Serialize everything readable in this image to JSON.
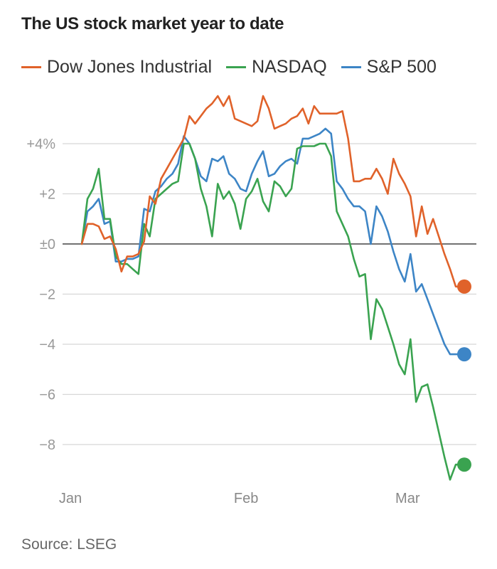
{
  "title": "The US stock market year to date",
  "source": "Source: LSEG",
  "chart_data": {
    "type": "line",
    "title": "The US stock market year to date",
    "xlabel": "",
    "ylabel": "",
    "x_tick_labels": [
      "Jan",
      "Feb",
      "Mar"
    ],
    "y_ticks": [
      {
        "value": 4,
        "label": "+4%"
      },
      {
        "value": 2,
        "label": "+2"
      },
      {
        "value": 0,
        "label": "±0"
      },
      {
        "value": -2,
        "label": "−2"
      },
      {
        "value": -4,
        "label": "−4"
      },
      {
        "value": -6,
        "label": "−6"
      },
      {
        "value": -8,
        "label": "−8"
      }
    ],
    "ylim": [
      -9.5,
      6
    ],
    "xlim": [
      0,
      70
    ],
    "x_month_positions": {
      "Jan": -1,
      "Feb": 30,
      "Mar": 58.5
    },
    "grid": true,
    "legend_position": "top",
    "series": [
      {
        "name": "Dow Jones Industrial",
        "color": "#e0622a",
        "x": [
          1,
          2,
          3,
          4,
          5,
          6,
          7,
          8,
          9,
          10,
          11,
          12,
          13,
          14,
          15,
          16,
          17,
          18,
          19,
          20,
          21,
          22,
          23,
          24,
          25,
          26,
          27,
          28,
          29,
          30,
          31,
          32,
          33,
          34,
          35,
          36,
          37,
          38,
          39,
          40,
          41,
          42,
          43,
          44,
          45,
          46,
          47,
          48,
          49,
          50,
          51,
          52,
          53,
          54,
          55,
          56,
          57,
          58,
          59,
          60,
          61,
          62,
          63,
          64,
          65,
          66,
          67,
          68
        ],
        "values": [
          0,
          0.8,
          0.8,
          0.7,
          0.2,
          0.3,
          -0.2,
          -1.1,
          -0.5,
          -0.5,
          -0.4,
          0.1,
          1.9,
          1.6,
          2.6,
          3.0,
          3.4,
          3.8,
          4.2,
          5.1,
          4.8,
          5.1,
          5.4,
          5.6,
          5.9,
          5.5,
          5.9,
          5.0,
          4.9,
          4.8,
          4.7,
          4.9,
          5.9,
          5.4,
          4.6,
          4.7,
          4.8,
          5.0,
          5.1,
          5.4,
          4.8,
          5.5,
          5.2,
          5.2,
          5.2,
          5.2,
          5.3,
          4.2,
          2.5,
          2.5,
          2.6,
          2.6,
          3.0,
          2.6,
          2.0,
          3.4,
          2.8,
          2.4,
          1.9,
          0.3,
          1.5,
          0.4,
          1.0,
          0.3,
          -0.4,
          -1.0,
          -1.7,
          -1.7
        ]
      },
      {
        "name": "NASDAQ",
        "color": "#3aa350",
        "x": [
          1,
          2,
          3,
          4,
          5,
          6,
          7,
          8,
          9,
          10,
          11,
          12,
          13,
          14,
          15,
          16,
          17,
          18,
          19,
          20,
          21,
          22,
          23,
          24,
          25,
          26,
          27,
          28,
          29,
          30,
          31,
          32,
          33,
          34,
          35,
          36,
          37,
          38,
          39,
          40,
          41,
          42,
          43,
          44,
          45,
          46,
          47,
          48,
          49,
          50,
          51,
          52,
          53,
          54,
          55,
          56,
          57,
          58,
          59,
          60,
          61,
          62,
          63,
          64,
          65,
          66,
          67,
          68
        ],
        "values": [
          0,
          1.8,
          2.2,
          3.0,
          1.0,
          1.0,
          -0.5,
          -0.8,
          -0.8,
          -1.0,
          -1.2,
          0.8,
          0.3,
          1.8,
          2.0,
          2.2,
          2.4,
          2.5,
          4.0,
          4.0,
          3.4,
          2.2,
          1.5,
          0.3,
          2.4,
          1.8,
          2.1,
          1.6,
          0.6,
          1.8,
          2.1,
          2.6,
          1.7,
          1.3,
          2.5,
          2.3,
          1.9,
          2.2,
          3.8,
          3.9,
          3.9,
          3.9,
          4.0,
          4.0,
          3.5,
          1.3,
          0.8,
          0.3,
          -0.6,
          -1.3,
          -1.2,
          -3.8,
          -2.2,
          -2.6,
          -3.3,
          -4.0,
          -4.8,
          -5.2,
          -3.8,
          -6.3,
          -5.7,
          -5.6,
          -6.5,
          -7.5,
          -8.5,
          -9.4,
          -8.8,
          -8.8
        ]
      },
      {
        "name": "S&P 500",
        "color": "#3d85c6",
        "x": [
          1,
          2,
          3,
          4,
          5,
          6,
          7,
          8,
          9,
          10,
          11,
          12,
          13,
          14,
          15,
          16,
          17,
          18,
          19,
          20,
          21,
          22,
          23,
          24,
          25,
          26,
          27,
          28,
          29,
          30,
          31,
          32,
          33,
          34,
          35,
          36,
          37,
          38,
          39,
          40,
          41,
          42,
          43,
          44,
          45,
          46,
          47,
          48,
          49,
          50,
          51,
          52,
          53,
          54,
          55,
          56,
          57,
          58,
          59,
          60,
          61,
          62,
          63,
          64,
          65,
          66,
          67,
          68
        ],
        "values": [
          0,
          1.3,
          1.5,
          1.8,
          0.8,
          0.9,
          -0.7,
          -0.7,
          -0.6,
          -0.6,
          -0.5,
          1.4,
          1.3,
          2.1,
          2.3,
          2.6,
          2.8,
          3.2,
          4.3,
          4.0,
          3.4,
          2.7,
          2.5,
          3.4,
          3.3,
          3.5,
          2.8,
          2.6,
          2.2,
          2.1,
          2.8,
          3.3,
          3.7,
          2.7,
          2.8,
          3.1,
          3.3,
          3.4,
          3.2,
          4.2,
          4.2,
          4.3,
          4.4,
          4.6,
          4.4,
          2.5,
          2.2,
          1.8,
          1.5,
          1.5,
          1.3,
          0.0,
          1.5,
          1.1,
          0.5,
          -0.3,
          -1.0,
          -1.5,
          -0.4,
          -1.9,
          -1.6,
          -2.2,
          -2.8,
          -3.4,
          -4.0,
          -4.4,
          -4.4,
          -4.4
        ]
      }
    ],
    "end_markers": [
      {
        "series": "Dow Jones Industrial",
        "x": 68,
        "value": -1.7
      },
      {
        "series": "NASDAQ",
        "x": 68,
        "value": -8.8
      },
      {
        "series": "S&P 500",
        "x": 68,
        "value": -4.4
      }
    ]
  }
}
